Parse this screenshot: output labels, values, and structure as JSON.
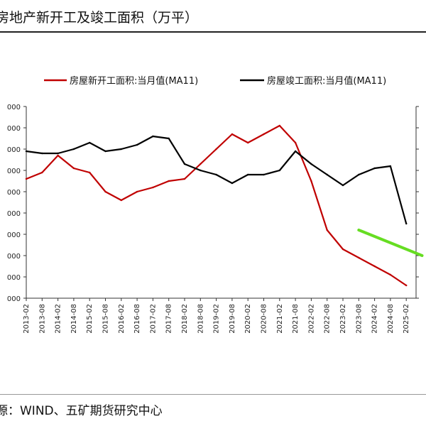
{
  "title": "房地产新开工及竣工面积（万平）",
  "source": "源：WIND、五矿期货研究中心",
  "chart_data": {
    "type": "line",
    "x": [
      "2013-02",
      "2013-08",
      "2014-02",
      "2014-08",
      "2015-02",
      "2015-08",
      "2016-02",
      "2016-08",
      "2017-02",
      "2017-08",
      "2018-02",
      "2018-08",
      "2019-02",
      "2019-08",
      "2020-02",
      "2020-08",
      "2021-02",
      "2021-08",
      "2022-02",
      "2022-08",
      "2023-02",
      "2023-08",
      "2024-02",
      "2024-08",
      "2025-02"
    ],
    "x_tick_labels": [
      "2013-02",
      "2013-08",
      "2014-02",
      "2014-08",
      "2015-02",
      "2015-08",
      "2016-02",
      "2016-08",
      "2017-02",
      "2017-08",
      "2018-02",
      "2018-08",
      "2019-02",
      "2019-08",
      "2020-02",
      "2020-08",
      "2021-02",
      "2021-08",
      "2022-02",
      "2022-08",
      "2023-02",
      "2023-08",
      "2024-02",
      "2024-08",
      "2025-02"
    ],
    "y_tick_labels": [
      "000",
      "000",
      "000",
      "000",
      "000",
      "000",
      "000",
      "000",
      "000",
      "000"
    ],
    "y_ticks": [
      0,
      1,
      2,
      3,
      4,
      5,
      6,
      7,
      8,
      9
    ],
    "ylim": [
      0,
      9
    ],
    "legend_position": "top",
    "series": [
      {
        "name": "房屋新开工面积:当月值(MA11)",
        "color": "#c00000",
        "values": [
          5.6,
          5.9,
          6.7,
          6.1,
          5.9,
          5.0,
          4.6,
          5.0,
          5.2,
          5.5,
          5.6,
          6.3,
          7.0,
          7.7,
          7.3,
          7.7,
          8.1,
          7.3,
          5.5,
          3.2,
          2.3,
          1.9,
          1.5,
          1.1,
          0.6
        ]
      },
      {
        "name": "房屋竣工面积:当月值(MA11)",
        "color": "#000000",
        "values": [
          6.9,
          6.8,
          6.8,
          7.0,
          7.3,
          6.9,
          7.0,
          7.2,
          7.6,
          7.5,
          6.3,
          6.0,
          5.8,
          5.4,
          5.8,
          5.8,
          6.0,
          6.9,
          6.3,
          5.8,
          5.3,
          5.8,
          6.1,
          6.2,
          3.5
        ]
      }
    ],
    "trend_line": {
      "color": "#66dd22",
      "x": [
        "2023-08",
        "2025-08"
      ],
      "y": [
        3.2,
        2.0
      ]
    }
  }
}
